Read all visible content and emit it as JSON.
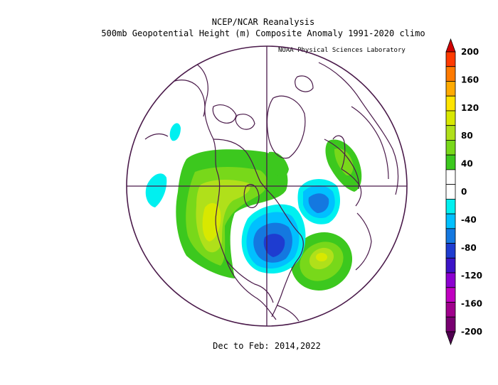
{
  "title_line1": "NCEP/NCAR Reanalysis",
  "title_line2": "500mb Geopotential Height (m) Composite Anomaly 1991-2020 climo",
  "credit": "NOAA Physical Sciences Laboratory",
  "period": "Dec to Feb: 2014,2022",
  "colors": {
    "land_outline": "#4a1a4a",
    "plus_200": "#d10000",
    "plus_180": "#ff3a00",
    "plus_160": "#ff7a00",
    "plus_140": "#ffaa00",
    "plus_120": "#ffe400",
    "plus_100": "#d8e800",
    "plus_80": "#b0e01a",
    "plus_60": "#78d81a",
    "plus_40": "#3cc81e",
    "zero": "#ffffff",
    "minus_20": "#00f0f0",
    "minus_40": "#00c0ff",
    "minus_60": "#1478e0",
    "minus_80": "#1e3cd0",
    "minus_100": "#3c14c8",
    "minus_120": "#8c00d0",
    "minus_140": "#c000c0",
    "minus_160": "#a0008c",
    "minus_180": "#780070",
    "minus_200": "#500050"
  },
  "colorbar": {
    "labels": [
      "200",
      "160",
      "120",
      "80",
      "40",
      "0",
      "-40",
      "-80",
      "-120",
      "-160",
      "-200"
    ]
  }
}
